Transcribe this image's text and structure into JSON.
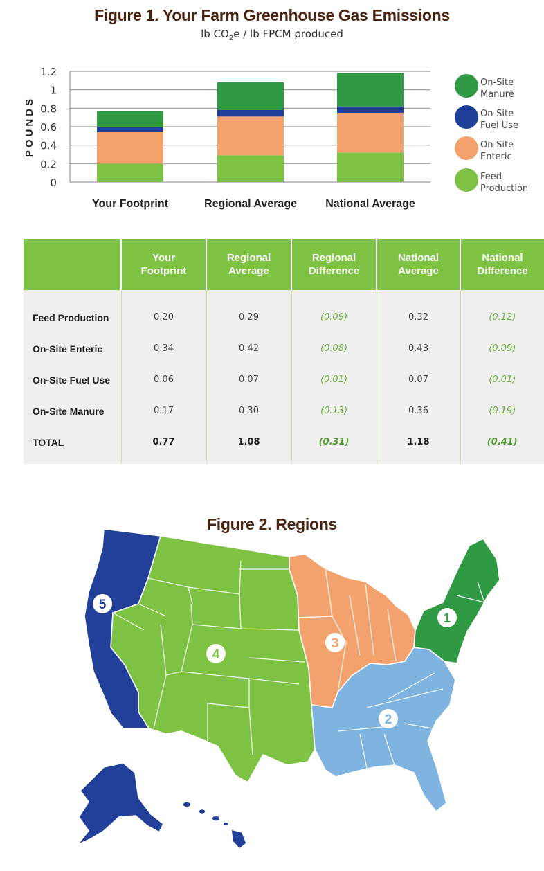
{
  "figure1": {
    "title": "Figure 1. Your Farm Greenhouse Gas Emissions",
    "subtitle_pre": "lb CO",
    "subtitle_sub": "2",
    "subtitle_post": "e / lb FPCM produced"
  },
  "colors": {
    "feed": "#7dc242",
    "enteric": "#f4a26d",
    "fuel": "#1f3f99",
    "manure": "#2f9a43",
    "header": "#7dc242",
    "title": "#4a2411"
  },
  "chart_data": {
    "type": "bar",
    "stacked": true,
    "categories": [
      "Your Footprint",
      "Regional Average",
      "National Average"
    ],
    "series": [
      {
        "name": "Feed Production",
        "values": [
          0.2,
          0.29,
          0.32
        ],
        "color": "#7dc242"
      },
      {
        "name": "On-Site Enteric",
        "values": [
          0.34,
          0.42,
          0.43
        ],
        "color": "#f4a26d"
      },
      {
        "name": "On-Site Fuel Use",
        "values": [
          0.06,
          0.07,
          0.07
        ],
        "color": "#1f3f99"
      },
      {
        "name": "On-Site Manure",
        "values": [
          0.17,
          0.3,
          0.36
        ],
        "color": "#2f9a43"
      }
    ],
    "legend": [
      {
        "line1": "On-Site",
        "line2": "Manure",
        "color": "#2f9a43"
      },
      {
        "line1": "On-Site",
        "line2": "Fuel Use",
        "color": "#1f3f99"
      },
      {
        "line1": "On-Site",
        "line2": "Enteric",
        "color": "#f4a26d"
      },
      {
        "line1": "Feed",
        "line2": "Production",
        "color": "#7dc242"
      }
    ],
    "ylabel": "POUNDS",
    "ylim": [
      0,
      1.2
    ],
    "yticks": [
      "0",
      "0.2",
      "0.4",
      "0.6",
      "0.8",
      "1",
      "1.2"
    ],
    "grid": true,
    "legend_position": "right"
  },
  "table": {
    "headers": [
      {
        "line1": "Your",
        "line2": "Footprint"
      },
      {
        "line1": "Regional",
        "line2": "Average"
      },
      {
        "line1": "Regional",
        "line2": "Difference"
      },
      {
        "line1": "National",
        "line2": "Average"
      },
      {
        "line1": "National",
        "line2": "Difference"
      }
    ],
    "rows": [
      {
        "label": "Feed Production",
        "cells": [
          "0.20",
          "0.29",
          "(0.09)",
          "0.32",
          "(0.12)"
        ]
      },
      {
        "label": "On-Site Enteric",
        "cells": [
          "0.34",
          "0.42",
          "(0.08)",
          "0.43",
          "(0.09)"
        ]
      },
      {
        "label": "On-Site Fuel Use",
        "cells": [
          "0.06",
          "0.07",
          "(0.01)",
          "0.07",
          "(0.01)"
        ]
      },
      {
        "label": "On-Site Manure",
        "cells": [
          "0.17",
          "0.30",
          "(0.13)",
          "0.36",
          "(0.19)"
        ]
      },
      {
        "label": "TOTAL",
        "cells": [
          "0.77",
          "1.08",
          "(0.31)",
          "1.18",
          "(0.41)"
        ]
      }
    ]
  },
  "figure2": {
    "title": "Figure 2. Regions",
    "region_labels": [
      "1",
      "2",
      "3",
      "4",
      "5"
    ],
    "region_colors": {
      "northeast": "#2f9a43",
      "southeast": "#7fb3e0",
      "midwest": "#f4a26d",
      "west": "#7dc242",
      "pacific": "#22409a"
    }
  }
}
